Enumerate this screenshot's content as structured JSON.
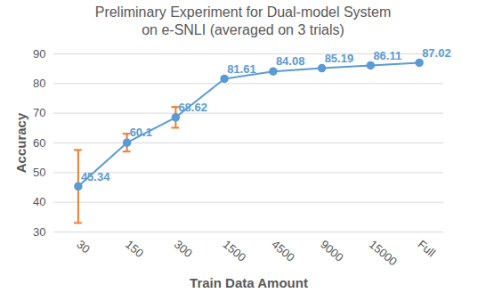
{
  "chart_data": {
    "type": "line",
    "title": "Preliminary Experiment for Dual-model System\non e-SNLI (averaged on 3 trials)",
    "x_label": "Train Data Amount",
    "y_label": "Accuracy",
    "categories": [
      "30",
      "150",
      "300",
      "1500",
      "4500",
      "9000",
      "15000",
      "Full"
    ],
    "values": [
      45.34,
      60.1,
      68.62,
      81.61,
      84.08,
      85.19,
      86.11,
      87.02
    ],
    "errors": [
      12.3,
      3,
      3.5,
      null,
      null,
      null,
      null,
      null
    ],
    "color": "#5b9bd5",
    "marker": "circle",
    "ylim": [
      30,
      90
    ],
    "yticks": [
      30,
      40,
      50,
      60,
      70,
      80,
      90
    ],
    "grid": true,
    "data_labels": true
  }
}
